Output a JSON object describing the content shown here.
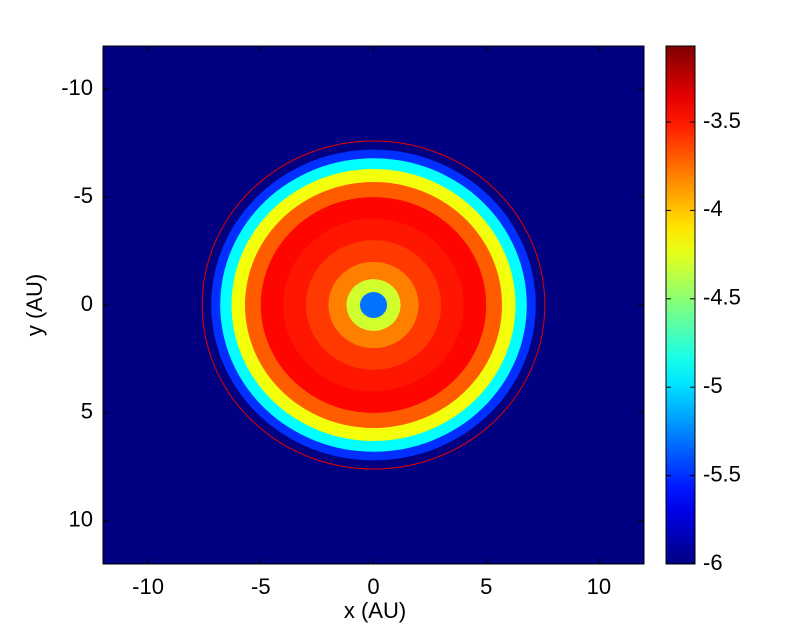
{
  "chart_data": {
    "type": "heatmap",
    "xlabel": "x (AU)",
    "ylabel": "y (AU)",
    "xlim": [
      -12,
      12
    ],
    "ylim": [
      12,
      -12
    ],
    "xticks": [
      -10,
      -5,
      0,
      5,
      10
    ],
    "yticks": [
      10,
      5,
      0,
      -5,
      -10
    ],
    "colormap": "jet",
    "colorbar": {
      "clim": [
        -6,
        -3.07
      ],
      "ticks": [
        -6,
        -5.5,
        -5,
        -4.5,
        -4,
        -3.5
      ]
    },
    "rings": {
      "r": [
        7.6,
        7.2,
        6.8,
        6.3,
        5.7,
        5,
        4,
        3,
        2,
        1.2,
        0.6
      ],
      "values": [
        -6,
        -5.5,
        -4.9,
        -4.2,
        -3.7,
        -3.45,
        -3.5,
        -3.6,
        -3.8,
        -4.3,
        -5.3
      ]
    }
  }
}
